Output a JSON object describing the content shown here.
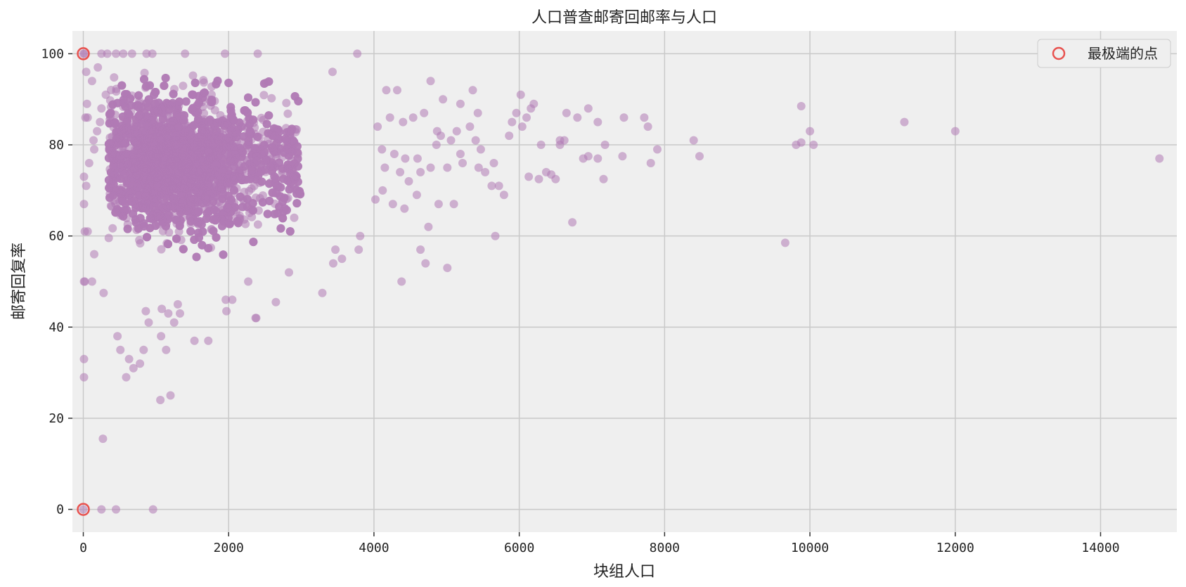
{
  "chart_data": {
    "type": "scatter",
    "title": "人口普查邮寄回邮率与人口",
    "xlabel": "块组人口",
    "ylabel": "邮寄回复率",
    "xlim": [
      -150,
      15050
    ],
    "ylim": [
      -5,
      105
    ],
    "xticks": [
      0,
      2000,
      4000,
      6000,
      8000,
      10000,
      12000,
      14000
    ],
    "yticks": [
      0,
      20,
      40,
      60,
      80,
      100
    ],
    "grid": true,
    "legend": {
      "placement": "top-right",
      "entries": [
        "最极端的点"
      ]
    },
    "colors": {
      "points": "#b07ab4",
      "extreme": "#e8524f",
      "background": "#efefef",
      "grid": "#c9c9c9"
    },
    "dense_cluster": {
      "x_range": [
        400,
        3800
      ],
      "y_range": [
        45,
        96
      ],
      "note_count_estimate": 6000
    },
    "points": [
      [
        0,
        100
      ],
      [
        15,
        100
      ],
      [
        250,
        100
      ],
      [
        330,
        100
      ],
      [
        450,
        100
      ],
      [
        550,
        100
      ],
      [
        670,
        100
      ],
      [
        870,
        100
      ],
      [
        950,
        100
      ],
      [
        1400,
        100
      ],
      [
        1950,
        100
      ],
      [
        2400,
        100
      ],
      [
        3770,
        100
      ],
      [
        0,
        0
      ],
      [
        250,
        0
      ],
      [
        450,
        0
      ],
      [
        960,
        0
      ],
      [
        10,
        33
      ],
      [
        10,
        29
      ],
      [
        270,
        15.5
      ],
      [
        470,
        38
      ],
      [
        510,
        35
      ],
      [
        630,
        33
      ],
      [
        690,
        31
      ],
      [
        780,
        32
      ],
      [
        830,
        35
      ],
      [
        590,
        29
      ],
      [
        1060,
        24
      ],
      [
        1200,
        25
      ],
      [
        1070,
        38
      ],
      [
        1140,
        35
      ],
      [
        900,
        41
      ],
      [
        1250,
        41
      ],
      [
        1720,
        37
      ],
      [
        1530,
        37
      ],
      [
        2380,
        42
      ],
      [
        2370,
        42
      ],
      [
        2650,
        45.5
      ],
      [
        1970,
        43.5
      ],
      [
        1960,
        46
      ],
      [
        2050,
        46
      ],
      [
        1300,
        45
      ],
      [
        1080,
        44
      ],
      [
        1170,
        43
      ],
      [
        1330,
        43
      ],
      [
        860,
        43.5
      ],
      [
        3290,
        47.5
      ],
      [
        4380,
        50
      ],
      [
        3440,
        54
      ],
      [
        3560,
        55
      ],
      [
        4710,
        54
      ],
      [
        5010,
        53
      ],
      [
        4640,
        57
      ],
      [
        4750,
        62
      ],
      [
        5670,
        60
      ],
      [
        3470,
        57
      ],
      [
        3790,
        57
      ],
      [
        3810,
        60
      ],
      [
        2830,
        52
      ],
      [
        2270,
        50
      ],
      [
        20,
        50
      ],
      [
        10,
        50
      ],
      [
        280,
        47.5
      ],
      [
        120,
        50
      ],
      [
        150,
        56
      ],
      [
        20,
        61
      ],
      [
        60,
        61
      ],
      [
        10,
        67
      ],
      [
        40,
        71
      ],
      [
        10,
        73
      ],
      [
        80,
        76
      ],
      [
        150,
        79
      ],
      [
        30,
        86
      ],
      [
        60,
        86
      ],
      [
        50,
        89
      ],
      [
        120,
        94
      ],
      [
        40,
        96
      ],
      [
        200,
        97
      ],
      [
        230,
        85
      ],
      [
        250,
        88
      ],
      [
        310,
        91
      ],
      [
        140,
        81
      ],
      [
        190,
        83
      ],
      [
        3430,
        96
      ],
      [
        4320,
        92
      ],
      [
        4780,
        94
      ],
      [
        5360,
        92
      ],
      [
        6020,
        91
      ],
      [
        4170,
        92
      ],
      [
        4950,
        90
      ],
      [
        5190,
        89
      ],
      [
        5430,
        87
      ],
      [
        6200,
        89
      ],
      [
        6160,
        88
      ],
      [
        5960,
        87
      ],
      [
        6650,
        87
      ],
      [
        6800,
        86
      ],
      [
        6950,
        88
      ],
      [
        7080,
        85
      ],
      [
        7440,
        86
      ],
      [
        7720,
        86
      ],
      [
        7770,
        84
      ],
      [
        6040,
        84
      ],
      [
        6100,
        86
      ],
      [
        6300,
        80
      ],
      [
        6560,
        81
      ],
      [
        6620,
        81
      ],
      [
        6560,
        80
      ],
      [
        7180,
        80
      ],
      [
        6880,
        77
      ],
      [
        6950,
        77.5
      ],
      [
        7080,
        77
      ],
      [
        7420,
        77.5
      ],
      [
        7810,
        76
      ],
      [
        7900,
        79
      ],
      [
        8400,
        81
      ],
      [
        8480,
        77.5
      ],
      [
        9810,
        80
      ],
      [
        9880,
        80.5
      ],
      [
        9880,
        88.5
      ],
      [
        10000,
        83
      ],
      [
        10050,
        80
      ],
      [
        11300,
        85
      ],
      [
        12000,
        83
      ],
      [
        14810,
        77
      ],
      [
        6130,
        73
      ],
      [
        6270,
        72.5
      ],
      [
        6370,
        74
      ],
      [
        6440,
        73.5
      ],
      [
        6500,
        72.5
      ],
      [
        7160,
        72.5
      ],
      [
        6730,
        63
      ],
      [
        9660,
        58.5
      ],
      [
        5620,
        71
      ],
      [
        5720,
        71
      ],
      [
        5790,
        69
      ],
      [
        5650,
        76
      ],
      [
        5440,
        75
      ],
      [
        5530,
        74
      ],
      [
        5470,
        79
      ],
      [
        5860,
        82
      ],
      [
        5900,
        85
      ],
      [
        4110,
        79
      ],
      [
        4280,
        78
      ],
      [
        4430,
        77
      ],
      [
        4600,
        77
      ],
      [
        4860,
        80
      ],
      [
        4920,
        82
      ],
      [
        5060,
        81
      ],
      [
        5140,
        83
      ],
      [
        5320,
        84
      ],
      [
        5400,
        81
      ],
      [
        5190,
        78
      ],
      [
        4050,
        84
      ],
      [
        4220,
        86
      ],
      [
        4400,
        85
      ],
      [
        4540,
        86
      ],
      [
        4690,
        87
      ],
      [
        4870,
        83
      ],
      [
        4360,
        74
      ],
      [
        4480,
        72
      ],
      [
        4590,
        69
      ],
      [
        4120,
        70
      ],
      [
        4260,
        67
      ],
      [
        4420,
        66
      ],
      [
        4020,
        68
      ],
      [
        4890,
        67
      ],
      [
        5100,
        67
      ],
      [
        5010,
        75
      ],
      [
        5220,
        76
      ],
      [
        4150,
        75
      ],
      [
        4640,
        74
      ],
      [
        4780,
        75
      ]
    ]
  }
}
